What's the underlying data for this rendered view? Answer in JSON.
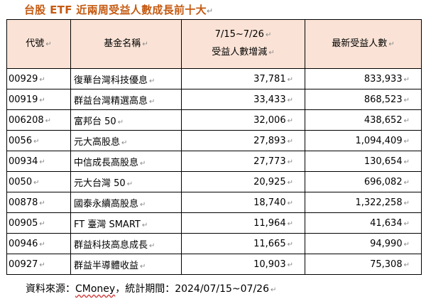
{
  "title": "台股 ETF 近兩周受益人數成長前十大",
  "headers": {
    "code": "代號",
    "name": "基金名稱",
    "change_line1": "7/15~7/26",
    "change_line2": "受益人數增減",
    "latest": "最新受益人數"
  },
  "rows": [
    {
      "code": "00929",
      "name": "復華台灣科技優息",
      "change": "37,781",
      "latest": "833,933"
    },
    {
      "code": "00919",
      "name": "群益台灣精選高息",
      "change": "33,433",
      "latest": "868,523"
    },
    {
      "code": "006208",
      "name": "富邦台 50",
      "change": "32,006",
      "latest": "438,652"
    },
    {
      "code": "0056",
      "name": "元大高股息",
      "change": "27,893",
      "latest": "1,094,409"
    },
    {
      "code": "00934",
      "name": "中信成長高股息",
      "change": "27,773",
      "latest": "130,654"
    },
    {
      "code": "0050",
      "name": "元大台灣 50",
      "change": "20,925",
      "latest": "696,082"
    },
    {
      "code": "00878",
      "name": "國泰永續高股息",
      "change": "18,740",
      "latest": "1,322,258"
    },
    {
      "code": "00905",
      "name": "FT 臺灣 SMART",
      "change": "11,964",
      "latest": "41,634"
    },
    {
      "code": "00946",
      "name": "群益科技高息成長",
      "change": "11,665",
      "latest": "94,990"
    },
    {
      "code": "00927",
      "name": "群益半導體收益",
      "change": "10,903",
      "latest": "75,308"
    }
  ],
  "source": {
    "prefix": "資料來源：",
    "name": "CMoney",
    "suffix": "，統計期間：2024/07/15~07/26"
  },
  "paragraph_mark": "↵"
}
